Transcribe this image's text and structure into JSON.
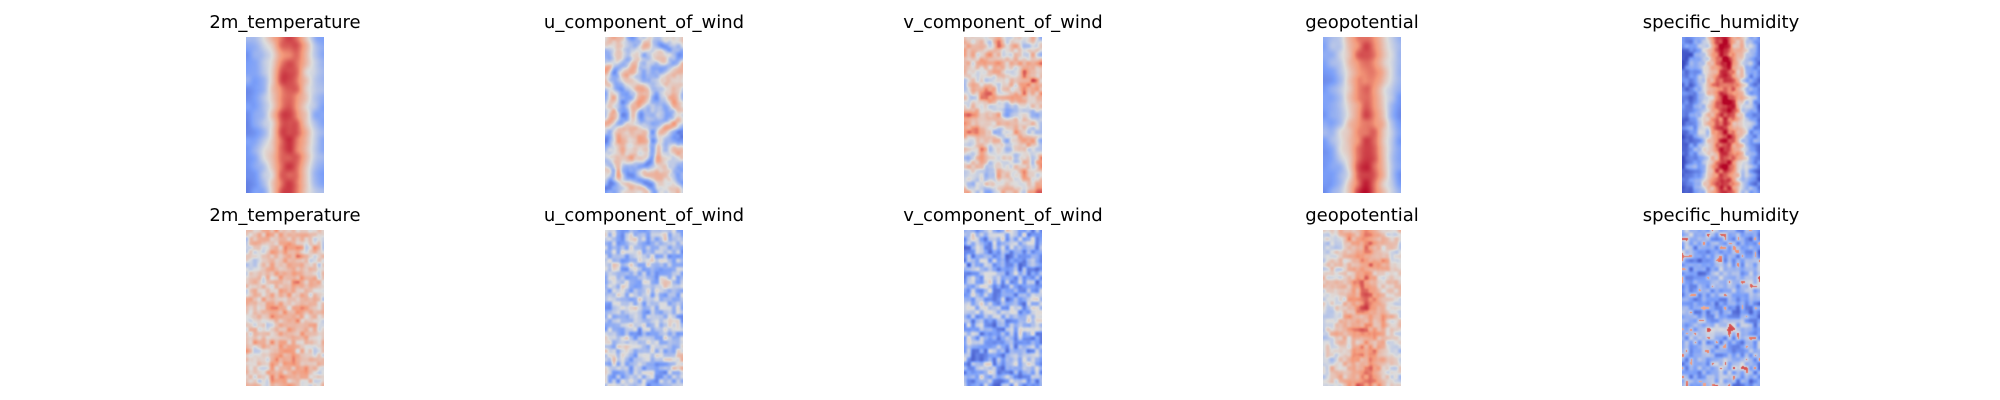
{
  "chart_data": [
    {
      "type": "heatmap",
      "title": "2m_temperature",
      "row": 1,
      "colormap": "coolwarm",
      "pattern": "warm-core",
      "axes_visible": false
    },
    {
      "type": "heatmap",
      "title": "u_component_of_wind",
      "row": 1,
      "colormap": "coolwarm",
      "pattern": "bands",
      "axes_visible": false
    },
    {
      "type": "heatmap",
      "title": "v_component_of_wind",
      "row": 1,
      "colormap": "coolwarm",
      "pattern": "mottled-warm",
      "axes_visible": false
    },
    {
      "type": "heatmap",
      "title": "geopotential",
      "row": 1,
      "colormap": "coolwarm",
      "pattern": "warm-core",
      "axes_visible": false
    },
    {
      "type": "heatmap",
      "title": "specific_humidity",
      "row": 1,
      "colormap": "coolwarm",
      "pattern": "humid-core",
      "axes_visible": false
    },
    {
      "type": "heatmap",
      "title": "2m_temperature",
      "row": 2,
      "colormap": "coolwarm",
      "pattern": "noisy-warm",
      "axes_visible": false
    },
    {
      "type": "heatmap",
      "title": "u_component_of_wind",
      "row": 2,
      "colormap": "coolwarm",
      "pattern": "noisy-neutral",
      "axes_visible": false
    },
    {
      "type": "heatmap",
      "title": "v_component_of_wind",
      "row": 2,
      "colormap": "coolwarm",
      "pattern": "noisy-cool",
      "axes_visible": false
    },
    {
      "type": "heatmap",
      "title": "geopotential",
      "row": 2,
      "colormap": "coolwarm",
      "pattern": "noisy-warm-core",
      "axes_visible": false
    },
    {
      "type": "heatmap",
      "title": "specific_humidity",
      "row": 2,
      "colormap": "coolwarm",
      "pattern": "noisy-cool-speckled",
      "axes_visible": false
    }
  ]
}
